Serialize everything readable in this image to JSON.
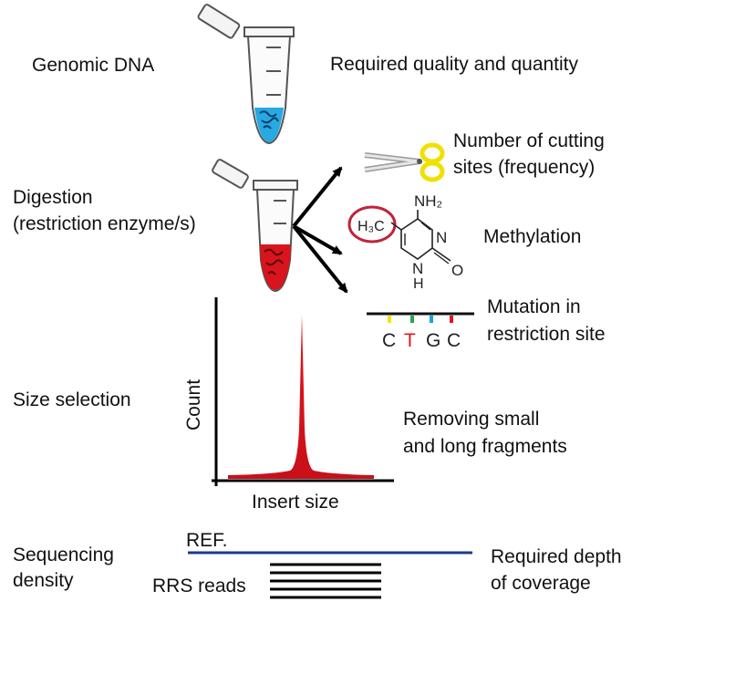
{
  "steps": {
    "genomic_dna": "Genomic DNA",
    "digestion_line1": "Digestion",
    "digestion_line2": "(restriction enzyme/s)",
    "size_selection": "Size selection",
    "sequencing_line1": "Sequencing",
    "sequencing_line2": "density"
  },
  "notes": {
    "quality": "Required quality and quantity",
    "cutting_line1": "Number of cutting",
    "cutting_line2": "sites (frequency)",
    "methylation": "Methylation",
    "mutation_line1": "Mutation in",
    "mutation_line2": "restriction site",
    "removing_line1": "Removing small",
    "removing_line2": "and long fragments",
    "depth_line1": "Required depth",
    "depth_line2": "of coverage"
  },
  "molecule": {
    "nh2": "NH₂",
    "ch3": "H₃C",
    "n_ring": "N",
    "nh": "N",
    "h": "H",
    "o": "O"
  },
  "site": {
    "bases": [
      "C",
      "T",
      "G",
      "C"
    ],
    "base_colors": [
      "#222222",
      "#e8141b",
      "#222222",
      "#222222"
    ],
    "tick_colors": [
      "#f2e500",
      "#e8141b",
      "#27a84a",
      "#1aa3e0"
    ]
  },
  "plot": {
    "ylabel": "Count",
    "xlabel": "Insert size"
  },
  "sequencing": {
    "ref_label": "REF.",
    "reads_label": "RRS reads",
    "read_count": 5
  },
  "colors": {
    "tube_blue": "#27a9e1",
    "tube_red": "#d8141c",
    "ref_line": "#1f3a8c",
    "scissors": "#f0e000",
    "circle": "#c0233b"
  }
}
